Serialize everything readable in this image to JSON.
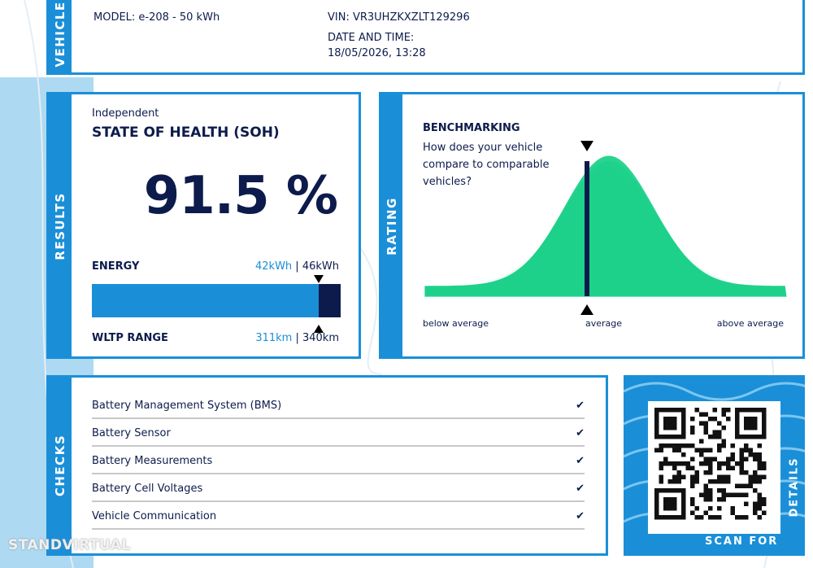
{
  "vehicle": {
    "section": "VEHICLE",
    "model": "MODEL: e-208 - 50 kWh",
    "vin": "VIN: VR3UHZKXZLT129296",
    "date_label": "DATE AND TIME:",
    "date": "18/05/2026, 13:28"
  },
  "results": {
    "section": "RESULTS",
    "kicker": "Independent",
    "title": "STATE OF HEALTH (SOH)",
    "soh": "91.5 %",
    "energy": {
      "label": "ENERGY",
      "current": "42kWh",
      "max": "46kWh"
    },
    "range": {
      "label": "WLTP RANGE",
      "current": "311km",
      "max": "340km"
    }
  },
  "rating": {
    "section": "RATING",
    "title": "BENCHMARKING",
    "question": "How does your vehicle compare to comparable vehicles?",
    "below": "below average",
    "average": "average",
    "above": "above average"
  },
  "checks": {
    "section": "CHECKS",
    "items": [
      "Battery Management System (BMS)",
      "Battery Sensor",
      "Battery Measurements",
      "Battery Cell Voltages",
      "Vehicle Communication"
    ]
  },
  "qr": {
    "scan": "SCAN FOR",
    "details": "DETAILS"
  },
  "watermark": "STANDVIRTUAL"
}
